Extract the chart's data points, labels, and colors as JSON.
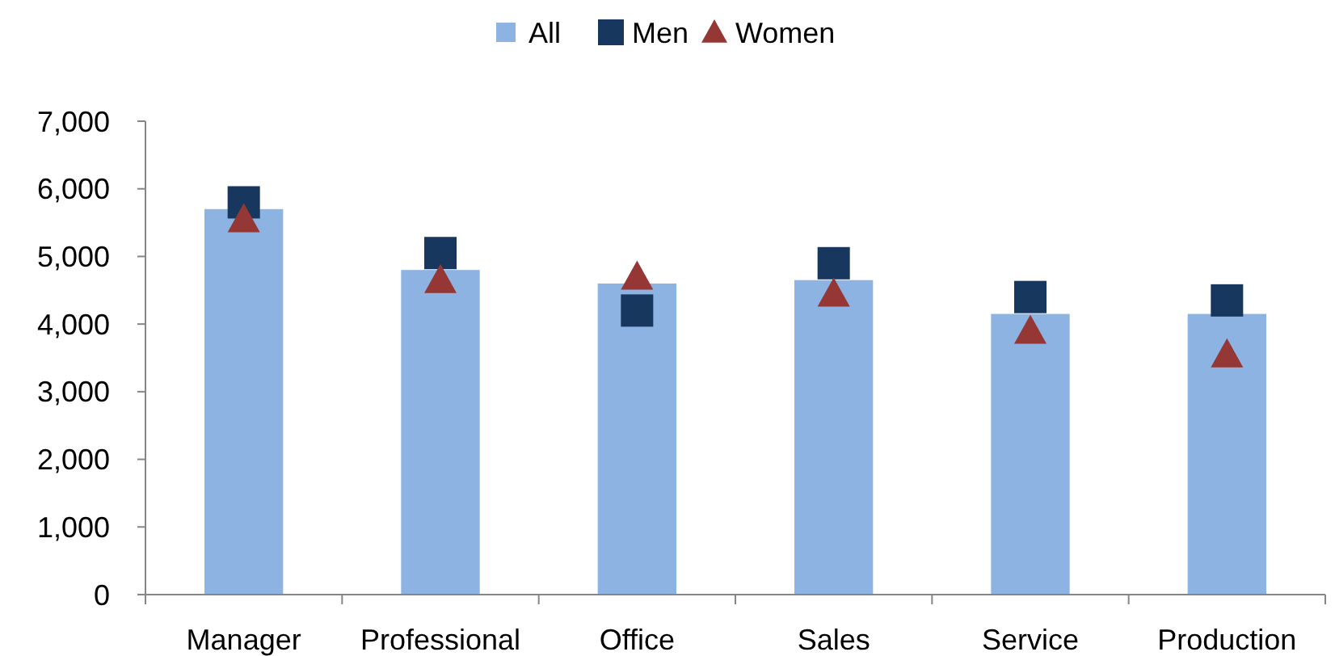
{
  "chart_data": {
    "type": "bar",
    "categories": [
      "Manager",
      "Professional",
      "Office",
      "Sales",
      "Service",
      "Production"
    ],
    "series": [
      {
        "name": "All",
        "color": "#8db3e2",
        "values": [
          5700,
          4800,
          4600,
          4650,
          4150,
          4150
        ]
      },
      {
        "name": "Men",
        "type": "scatter",
        "marker": "square",
        "color": "#17375e",
        "values": [
          5800,
          5050,
          4200,
          4900,
          4400,
          4350
        ]
      },
      {
        "name": "Women",
        "type": "scatter",
        "marker": "triangle",
        "color": "#953735",
        "values": [
          5550,
          4650,
          4700,
          4450,
          3900,
          3550
        ]
      }
    ],
    "ylim": [
      0,
      7000
    ],
    "yticks": [
      {
        "value": 0,
        "label": "0"
      },
      {
        "value": 1000,
        "label": "1,000"
      },
      {
        "value": 2000,
        "label": "2,000"
      },
      {
        "value": 3000,
        "label": "3,000"
      },
      {
        "value": 4000,
        "label": "4,000"
      },
      {
        "value": 5000,
        "label": "5,000"
      },
      {
        "value": 6000,
        "label": "6,000"
      },
      {
        "value": 7000,
        "label": "7,000"
      }
    ],
    "grid": false,
    "legend": "top"
  }
}
